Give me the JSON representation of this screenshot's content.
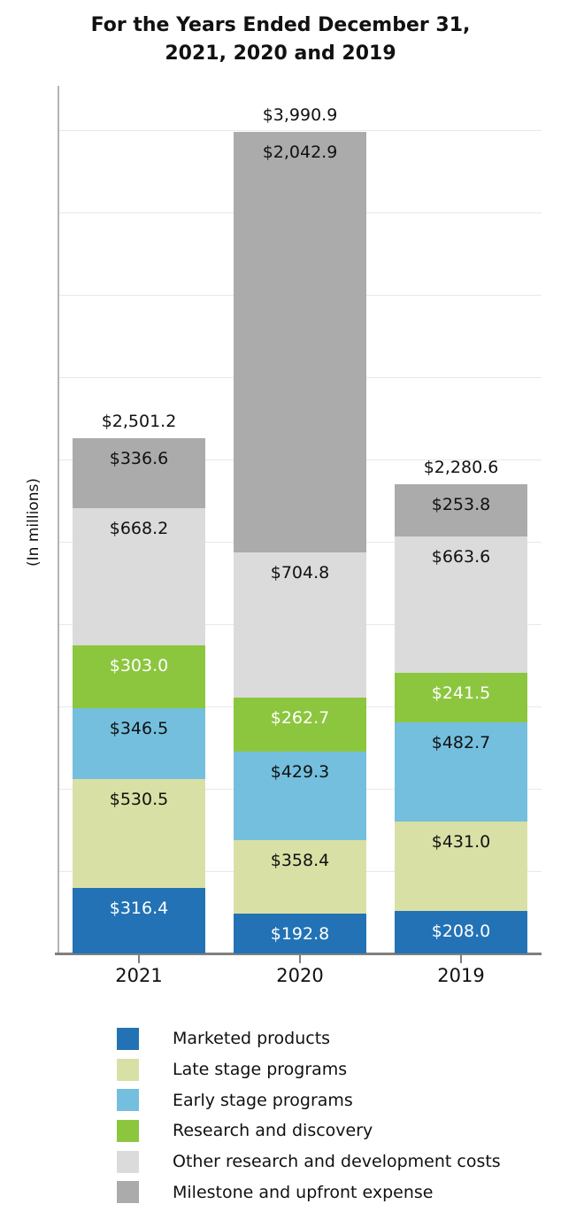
{
  "title": {
    "line1": "For the Years Ended December 31,",
    "line2": "2021, 2020 and 2019"
  },
  "chart_data": {
    "type": "bar",
    "stacked": true,
    "title": "For the Years Ended December 31, 2021, 2020 and 2019",
    "ylabel": "(In millions)",
    "xlabel": "",
    "categories": [
      "2021",
      "2020",
      "2019"
    ],
    "series": [
      {
        "name": "Marketed products",
        "color": "#2272b5",
        "text_color": "#ffffff",
        "values": [
          316.4,
          192.8,
          208.0
        ],
        "labels": [
          "$316.4",
          "$192.8",
          "$208.0"
        ]
      },
      {
        "name": "Late stage programs",
        "color": "#d9e0a5",
        "text_color": "#111111",
        "values": [
          530.5,
          358.4,
          431.0
        ],
        "labels": [
          "$530.5",
          "$358.4",
          "$431.0"
        ]
      },
      {
        "name": "Early stage programs",
        "color": "#74bfde",
        "text_color": "#111111",
        "values": [
          346.5,
          429.3,
          482.7
        ],
        "labels": [
          "$346.5",
          "$429.3",
          "$482.7"
        ]
      },
      {
        "name": "Research and discovery",
        "color": "#8cc63f",
        "text_color": "#ffffff",
        "values": [
          303.0,
          262.7,
          241.5
        ],
        "labels": [
          "$303.0",
          "$262.7",
          "$241.5"
        ]
      },
      {
        "name": "Other research and development costs",
        "color": "#dbdbdb",
        "text_color": "#111111",
        "values": [
          668.2,
          704.8,
          663.6
        ],
        "labels": [
          "$668.2",
          "$704.8",
          "$663.6"
        ]
      },
      {
        "name": "Milestone and upfront expense",
        "color": "#ababab",
        "text_color": "#111111",
        "values": [
          336.6,
          2042.9,
          253.8
        ],
        "labels": [
          "$336.6",
          "$2,042.9",
          "$253.8"
        ]
      }
    ],
    "totals": {
      "values": [
        2501.2,
        3990.9,
        2280.6
      ],
      "labels": [
        "$2,501.2",
        "$3,990.9",
        "$2,280.6"
      ]
    },
    "ylim": [
      0,
      4000
    ],
    "gridline_step": 400,
    "grid": true,
    "y_tick_labels_shown": false,
    "legend_position": "bottom"
  },
  "colors": {
    "background": "#ffffff",
    "x_axis": "#7f7f7f",
    "y_axis": "#b3b3b3",
    "gridline": "#e8e8e8",
    "title_text": "#111111"
  }
}
